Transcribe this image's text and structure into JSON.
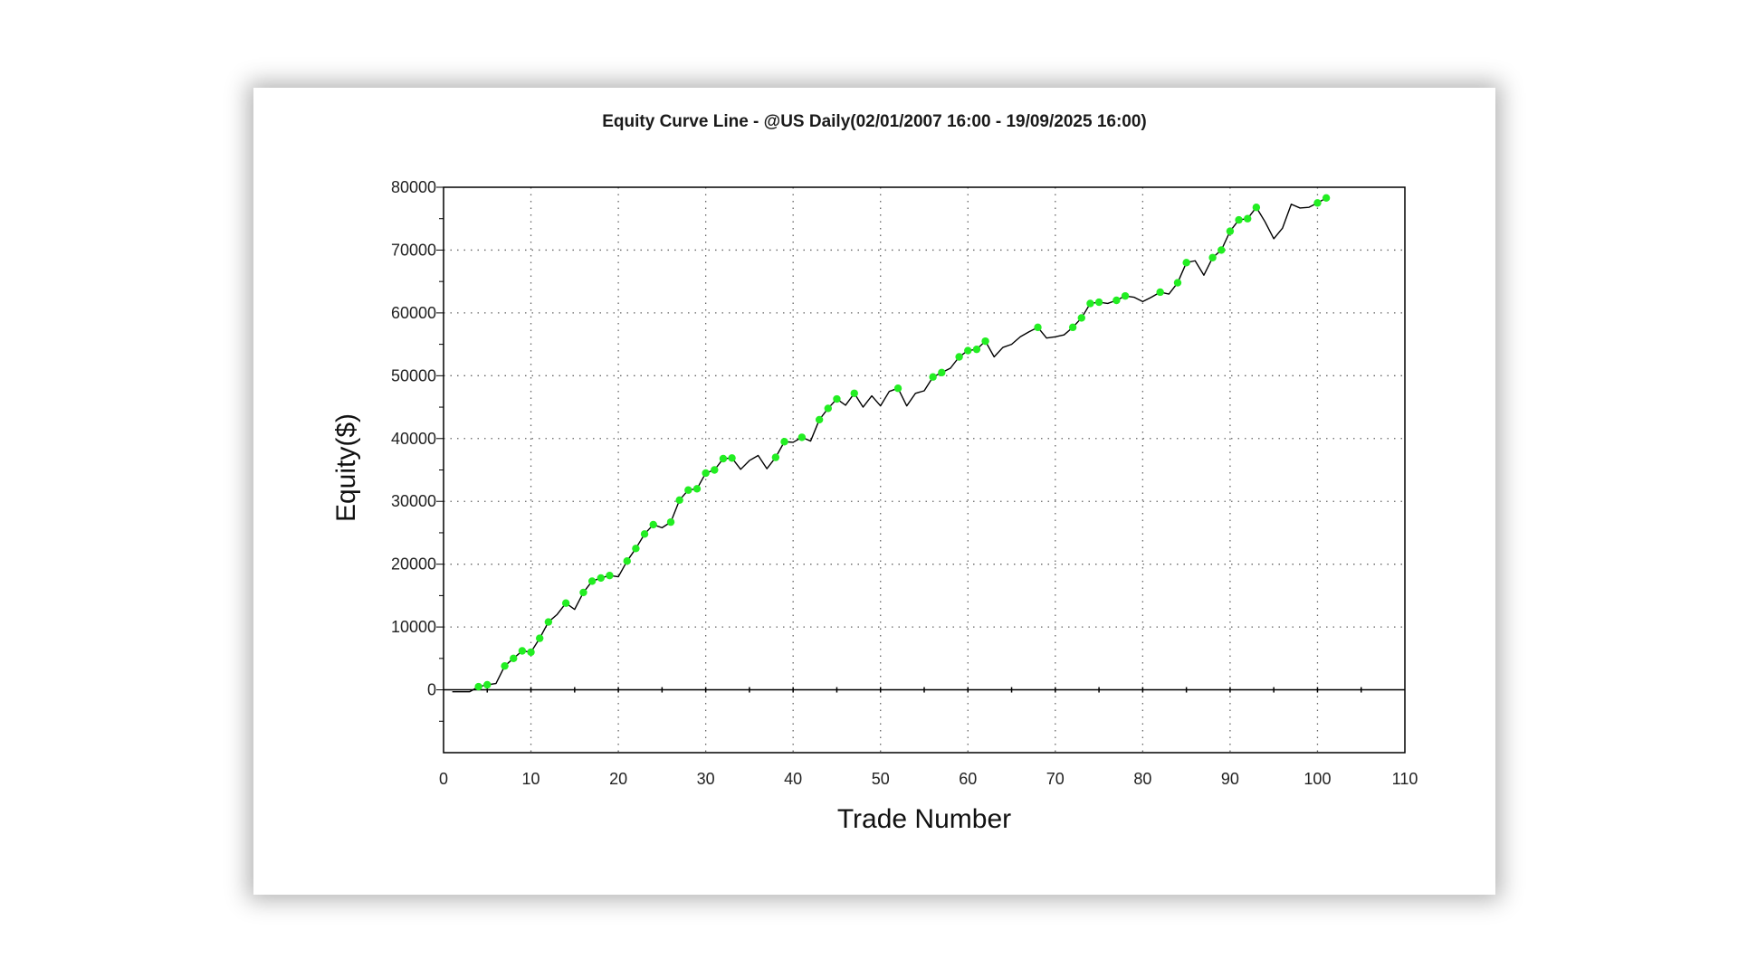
{
  "chart_data": {
    "type": "line",
    "title": "Equity Curve Line - @US Daily(02/01/2007 16:00 - 19/09/2025 16:00)",
    "xlabel": "Trade Number",
    "ylabel": "Equity($)",
    "xlim": [
      0,
      110
    ],
    "ylim": [
      -10000,
      80000
    ],
    "xticks": [
      0,
      10,
      20,
      30,
      40,
      50,
      60,
      70,
      80,
      90,
      100,
      110
    ],
    "yticks": [
      0,
      10000,
      20000,
      30000,
      40000,
      50000,
      60000,
      70000,
      80000
    ],
    "xtick_labels": [
      "0",
      "10",
      "20",
      "30",
      "40",
      "50",
      "60",
      "70",
      "80",
      "90",
      "100",
      "110"
    ],
    "ytick_labels": [
      "0",
      "10000",
      "20000",
      "30000",
      "40000",
      "50000",
      "60000",
      "70000",
      "80000"
    ],
    "grid": true,
    "colors": {
      "line": "#000000",
      "marker": "#22ee22",
      "grid": "#666666"
    },
    "series": [
      {
        "x": [
          1,
          2,
          3,
          4,
          5,
          6,
          7,
          8,
          9,
          10,
          11,
          12,
          13,
          14,
          15,
          16,
          17,
          18,
          19,
          20,
          21,
          22,
          23,
          24,
          25,
          26,
          27,
          28,
          29,
          30,
          31,
          32,
          33,
          34,
          35,
          36,
          37,
          38,
          39,
          40,
          41,
          42,
          43,
          44,
          45,
          46,
          47,
          48,
          49,
          50,
          51,
          52,
          53,
          54,
          55,
          56,
          57,
          58,
          59,
          60,
          61,
          62,
          63,
          64,
          65,
          66,
          67,
          68,
          69,
          70,
          71,
          72,
          73,
          74,
          75,
          76,
          77,
          78,
          79,
          80,
          81,
          82,
          83,
          84,
          85,
          86,
          87,
          88,
          89,
          90,
          91,
          92,
          93,
          94,
          95,
          96,
          97,
          98,
          99,
          100,
          101
        ],
        "y": [
          -300,
          -300,
          -300,
          500,
          800,
          1000,
          3800,
          5000,
          6200,
          6000,
          8200,
          10800,
          12000,
          13800,
          12800,
          15500,
          17300,
          17800,
          18200,
          18000,
          20500,
          22500,
          24800,
          26300,
          25800,
          26700,
          30200,
          31800,
          32000,
          34500,
          35000,
          36800,
          36900,
          35100,
          36500,
          37300,
          35200,
          37000,
          39500,
          39400,
          40200,
          39600,
          43000,
          44800,
          46300,
          45300,
          47200,
          45000,
          46800,
          45200,
          47500,
          48000,
          45200,
          47200,
          47600,
          49800,
          50500,
          51200,
          53000,
          54000,
          54200,
          55500,
          53000,
          54500,
          55000,
          56200,
          57000,
          57700,
          56000,
          56200,
          56500,
          57700,
          59200,
          61500,
          61700,
          61500,
          62000,
          62700,
          62500,
          61800,
          62500,
          63300,
          63000,
          64800,
          68000,
          68300,
          66000,
          68800,
          70000,
          73000,
          74800,
          75000,
          76800,
          74500,
          71800,
          73500,
          77300,
          76700,
          76800,
          77500,
          78300
        ],
        "win": [
          false,
          false,
          false,
          true,
          true,
          false,
          true,
          true,
          true,
          true,
          true,
          true,
          false,
          true,
          false,
          true,
          true,
          true,
          true,
          false,
          true,
          true,
          true,
          true,
          false,
          true,
          true,
          true,
          true,
          true,
          true,
          true,
          true,
          false,
          false,
          false,
          false,
          true,
          true,
          false,
          true,
          false,
          true,
          true,
          true,
          false,
          true,
          false,
          false,
          false,
          false,
          true,
          false,
          false,
          false,
          true,
          true,
          false,
          true,
          true,
          true,
          true,
          false,
          false,
          false,
          false,
          false,
          true,
          false,
          false,
          false,
          true,
          true,
          true,
          true,
          false,
          true,
          true,
          false,
          false,
          false,
          true,
          false,
          true,
          true,
          false,
          false,
          true,
          true,
          true,
          true,
          true,
          true,
          false,
          false,
          false,
          false,
          false,
          false,
          true,
          true
        ]
      }
    ]
  }
}
